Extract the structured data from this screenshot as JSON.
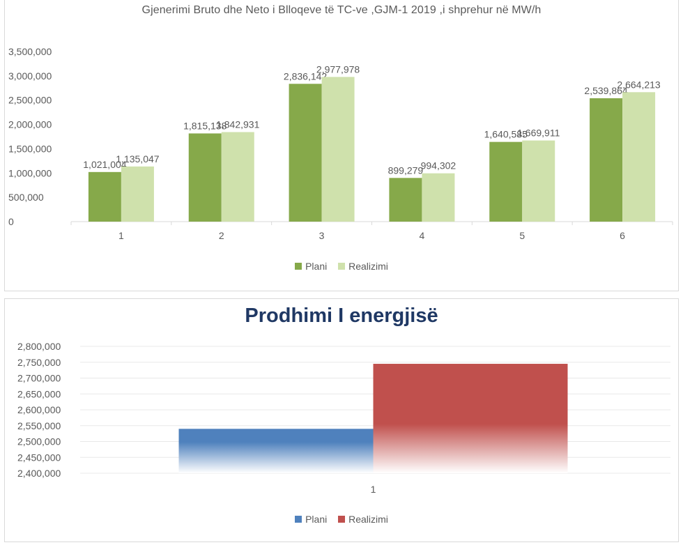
{
  "colors": {
    "plani_1": "#86a94a",
    "realizimi_1": "#cfe1ac",
    "plani_2": "#4f81bd",
    "realizimi_2": "#c0504d",
    "axis_text": "#595959",
    "grid": "#e8e8e8"
  },
  "chart_data": [
    {
      "type": "bar",
      "title": "Gjenerimi Bruto dhe Neto i Blloqeve të TC-ve ,GJM-1 2019 ,i shprehur në MW/h",
      "categories": [
        "1",
        "2",
        "3",
        "4",
        "5",
        "6"
      ],
      "series": [
        {
          "name": "Plani",
          "values": [
            1021004,
            1815138,
            2836142,
            899279,
            1640585,
            2539864
          ],
          "labels": [
            "1,021,004",
            "1,815,138",
            "2,836,142",
            "899,279",
            "1,640,585",
            "2,539,864"
          ]
        },
        {
          "name": "Realizimi",
          "values": [
            1135047,
            1842931,
            2977978,
            994302,
            1669911,
            2664213
          ],
          "labels": [
            "1,135,047",
            "1,842,931",
            "2,977,978",
            "994,302",
            "1,669,911",
            "2,664,213"
          ]
        }
      ],
      "ylim": [
        0,
        3500000
      ],
      "yticks": [
        "0",
        "500,000",
        "1,000,000",
        "1,500,000",
        "2,000,000",
        "2,500,000",
        "3,000,000",
        "3,500,000"
      ],
      "legend_position": "bottom",
      "grid": false
    },
    {
      "type": "bar",
      "title": "Prodhimi I energjisë",
      "categories": [
        "1"
      ],
      "series": [
        {
          "name": "Plani",
          "values": [
            2540000
          ]
        },
        {
          "name": "Realizimi",
          "values": [
            2745000
          ]
        }
      ],
      "ylim": [
        2400000,
        2800000
      ],
      "yticks": [
        "2,400,000",
        "2,450,000",
        "2,500,000",
        "2,550,000",
        "2,600,000",
        "2,650,000",
        "2,700,000",
        "2,750,000",
        "2,800,000"
      ],
      "legend_position": "bottom",
      "grid": true
    }
  ]
}
